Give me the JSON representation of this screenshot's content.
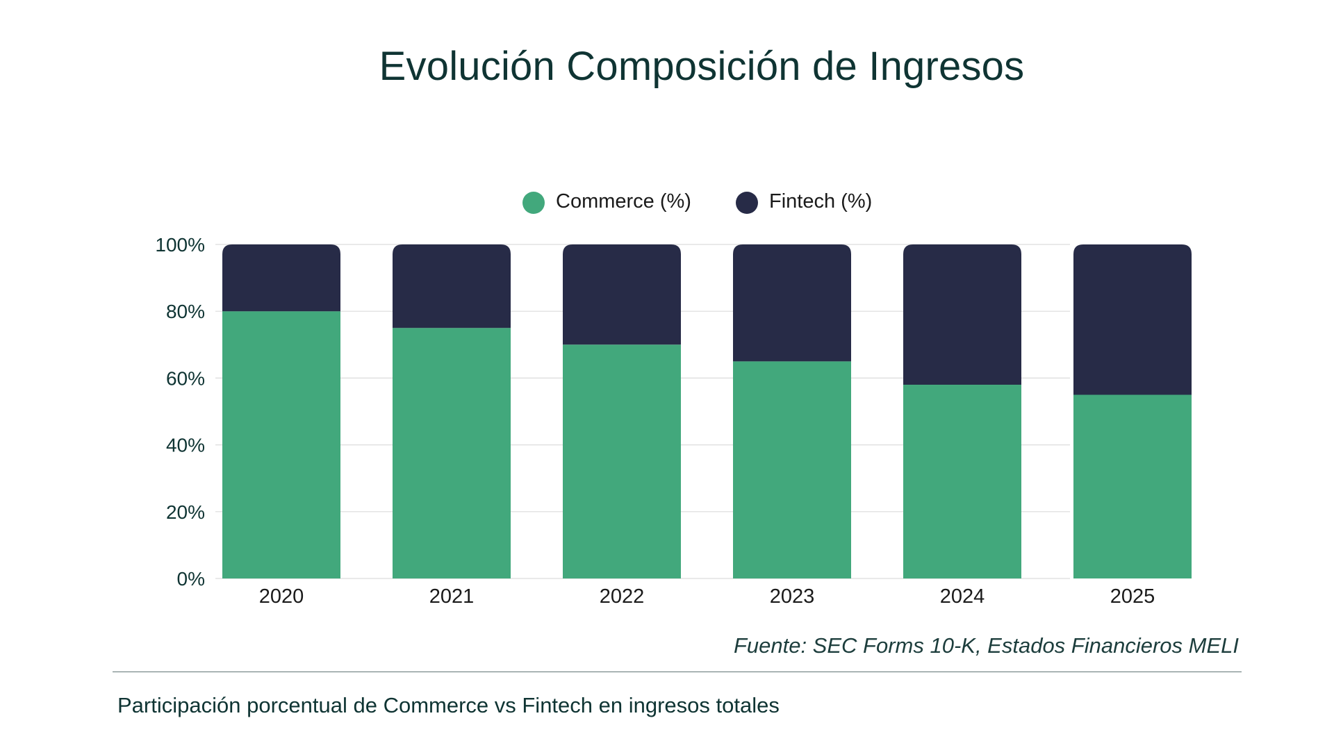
{
  "colors": {
    "commerce": "#42a87c",
    "fintech": "#272b47",
    "grid": "#dcdcdc",
    "text": "#0f3433"
  },
  "footer": {
    "source": "Fuente: SEC Forms 10-K, Estados Financieros MELI",
    "caption": "Participación porcentual de Commerce vs Fintech en ingresos totales"
  },
  "chart_data": {
    "type": "bar",
    "stacked": true,
    "title": "Evolución Composición de Ingresos",
    "xlabel": "",
    "ylabel": "",
    "categories": [
      "2020",
      "2021",
      "2022",
      "2023",
      "2024",
      "2025"
    ],
    "series": [
      {
        "name": "Commerce (%)",
        "values": [
          80,
          75,
          70,
          65,
          58,
          55
        ]
      },
      {
        "name": "Fintech (%)",
        "values": [
          20,
          25,
          30,
          35,
          42,
          45
        ]
      }
    ],
    "ylim": [
      0,
      100
    ],
    "yticks": [
      "0%",
      "20%",
      "40%",
      "60%",
      "80%",
      "100%"
    ],
    "grid": true,
    "legend": "top-center"
  }
}
